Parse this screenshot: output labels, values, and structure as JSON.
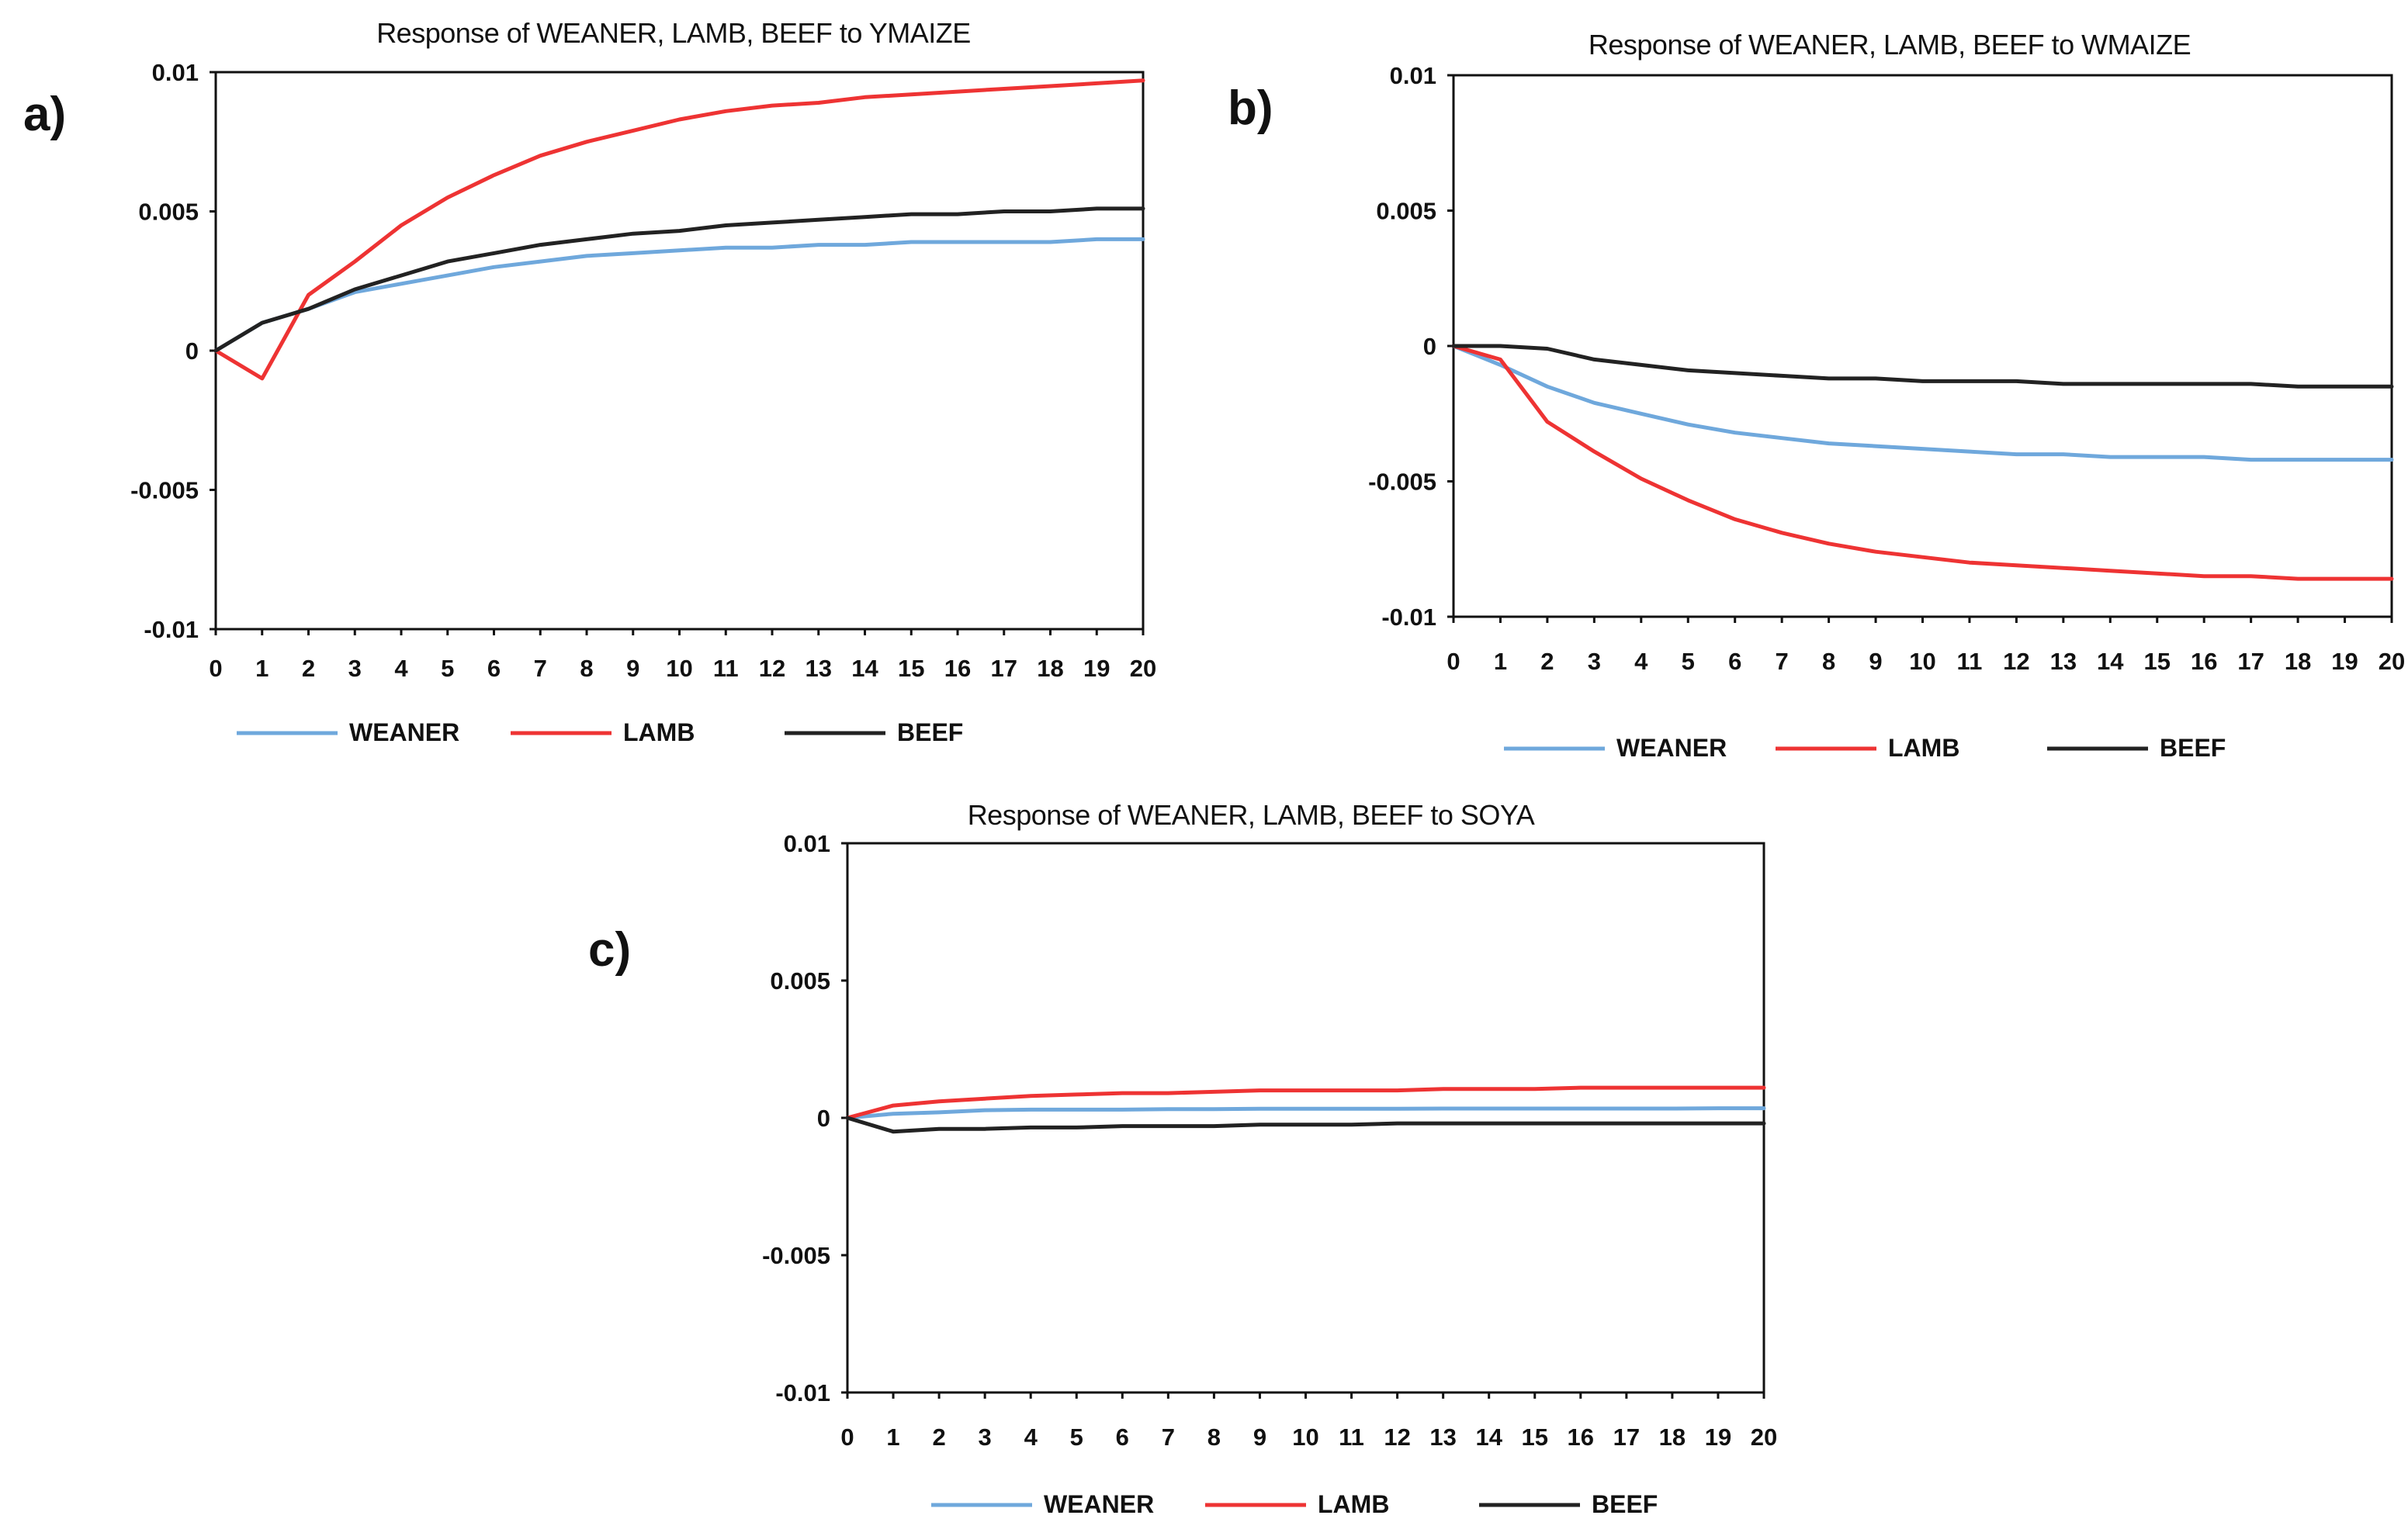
{
  "chart_data": [
    {
      "type": "line",
      "panel_label": "a)",
      "title": "Response of  WEANER, LAMB, BEEF to YMAIZE",
      "xlabel": "",
      "ylabel": "",
      "x": [
        0,
        1,
        2,
        3,
        4,
        5,
        6,
        7,
        8,
        9,
        10,
        11,
        12,
        13,
        14,
        15,
        16,
        17,
        18,
        19,
        20
      ],
      "x_tick_labels": [
        "0",
        "1",
        "2",
        "3",
        "4",
        "5",
        "6",
        "7",
        "8",
        "9",
        "10",
        "11",
        "12",
        "13",
        "14",
        "15",
        "16",
        "17",
        "18",
        "19",
        "20"
      ],
      "ylim": [
        -0.01,
        0.01
      ],
      "y_ticks": [
        0.01,
        0.005,
        0,
        -0.005,
        -0.01
      ],
      "y_tick_labels": [
        "0.01",
        "0.005",
        "0",
        "-0.005",
        "-0.01"
      ],
      "legend_position": "bottom",
      "series": [
        {
          "name": "WEANER",
          "color": "#6fa8dc",
          "values": [
            0,
            0.001,
            0.0015,
            0.0021,
            0.0024,
            0.0027,
            0.003,
            0.0032,
            0.0034,
            0.0035,
            0.0036,
            0.0037,
            0.0037,
            0.0038,
            0.0038,
            0.0039,
            0.0039,
            0.0039,
            0.0039,
            0.004,
            0.004
          ]
        },
        {
          "name": "LAMB",
          "color": "#ee3333",
          "values": [
            0,
            -0.001,
            0.002,
            0.0032,
            0.0045,
            0.0055,
            0.0063,
            0.007,
            0.0075,
            0.0079,
            0.0083,
            0.0086,
            0.0088,
            0.0089,
            0.0091,
            0.0092,
            0.0093,
            0.0094,
            0.0095,
            0.0096,
            0.0097
          ]
        },
        {
          "name": "BEEF",
          "color": "#222222",
          "values": [
            0,
            0.001,
            0.0015,
            0.0022,
            0.0027,
            0.0032,
            0.0035,
            0.0038,
            0.004,
            0.0042,
            0.0043,
            0.0045,
            0.0046,
            0.0047,
            0.0048,
            0.0049,
            0.0049,
            0.005,
            0.005,
            0.0051,
            0.0051
          ]
        }
      ]
    },
    {
      "type": "line",
      "panel_label": "b)",
      "title": "Response of  WEANER, LAMB, BEEF to WMAIZE",
      "xlabel": "",
      "ylabel": "",
      "x": [
        0,
        1,
        2,
        3,
        4,
        5,
        6,
        7,
        8,
        9,
        10,
        11,
        12,
        13,
        14,
        15,
        16,
        17,
        18,
        19,
        20
      ],
      "x_tick_labels": [
        "0",
        "1",
        "2",
        "3",
        "4",
        "5",
        "6",
        "7",
        "8",
        "9",
        "10",
        "11",
        "12",
        "13",
        "14",
        "15",
        "16",
        "17",
        "18",
        "19",
        "20"
      ],
      "ylim": [
        -0.01,
        0.01
      ],
      "y_ticks": [
        0.01,
        0.005,
        0,
        -0.005,
        -0.01
      ],
      "y_tick_labels": [
        "0.01",
        "0.005",
        "0",
        "-0.005",
        "-0.01"
      ],
      "legend_position": "bottom",
      "series": [
        {
          "name": "WEANER",
          "color": "#6fa8dc",
          "values": [
            0,
            -0.0007,
            -0.0015,
            -0.0021,
            -0.0025,
            -0.0029,
            -0.0032,
            -0.0034,
            -0.0036,
            -0.0037,
            -0.0038,
            -0.0039,
            -0.004,
            -0.004,
            -0.0041,
            -0.0041,
            -0.0041,
            -0.0042,
            -0.0042,
            -0.0042,
            -0.0042
          ]
        },
        {
          "name": "LAMB",
          "color": "#ee3333",
          "values": [
            0,
            -0.0005,
            -0.0028,
            -0.0039,
            -0.0049,
            -0.0057,
            -0.0064,
            -0.0069,
            -0.0073,
            -0.0076,
            -0.0078,
            -0.008,
            -0.0081,
            -0.0082,
            -0.0083,
            -0.0084,
            -0.0085,
            -0.0085,
            -0.0086,
            -0.0086,
            -0.0086
          ]
        },
        {
          "name": "BEEF",
          "color": "#222222",
          "values": [
            0,
            0,
            -0.0001,
            -0.0005,
            -0.0007,
            -0.0009,
            -0.001,
            -0.0011,
            -0.0012,
            -0.0012,
            -0.0013,
            -0.0013,
            -0.0013,
            -0.0014,
            -0.0014,
            -0.0014,
            -0.0014,
            -0.0014,
            -0.0015,
            -0.0015,
            -0.0015
          ]
        }
      ]
    },
    {
      "type": "line",
      "panel_label": "c)",
      "title": "Response of  WEANER, LAMB, BEEF to SOYA",
      "xlabel": "",
      "ylabel": "",
      "x": [
        0,
        1,
        2,
        3,
        4,
        5,
        6,
        7,
        8,
        9,
        10,
        11,
        12,
        13,
        14,
        15,
        16,
        17,
        18,
        19,
        20
      ],
      "x_tick_labels": [
        "0",
        "1",
        "2",
        "3",
        "4",
        "5",
        "6",
        "7",
        "8",
        "9",
        "10",
        "11",
        "12",
        "13",
        "14",
        "15",
        "16",
        "17",
        "18",
        "19",
        "20"
      ],
      "ylim": [
        -0.01,
        0.01
      ],
      "y_ticks": [
        0.01,
        0.005,
        0,
        -0.005,
        -0.01
      ],
      "y_tick_labels": [
        "0.01",
        "0.005",
        "0",
        "-0.005",
        "-0.01"
      ],
      "legend_position": "bottom",
      "series": [
        {
          "name": "WEANER",
          "color": "#6fa8dc",
          "values": [
            0,
            0.00015,
            0.0002,
            0.00028,
            0.0003,
            0.0003,
            0.0003,
            0.00032,
            0.00032,
            0.00033,
            0.00033,
            0.00033,
            0.00033,
            0.00034,
            0.00034,
            0.00034,
            0.00034,
            0.00034,
            0.00034,
            0.00035,
            0.00035
          ]
        },
        {
          "name": "LAMB",
          "color": "#ee3333",
          "values": [
            0,
            0.00045,
            0.0006,
            0.0007,
            0.0008,
            0.00085,
            0.0009,
            0.0009,
            0.00095,
            0.001,
            0.001,
            0.001,
            0.001,
            0.00105,
            0.00105,
            0.00105,
            0.0011,
            0.0011,
            0.0011,
            0.0011,
            0.0011
          ]
        },
        {
          "name": "BEEF",
          "color": "#222222",
          "values": [
            0,
            -0.0005,
            -0.0004,
            -0.0004,
            -0.00035,
            -0.00035,
            -0.0003,
            -0.0003,
            -0.0003,
            -0.00025,
            -0.00025,
            -0.00025,
            -0.0002,
            -0.0002,
            -0.0002,
            -0.0002,
            -0.0002,
            -0.0002,
            -0.0002,
            -0.0002,
            -0.0002
          ]
        }
      ]
    }
  ]
}
